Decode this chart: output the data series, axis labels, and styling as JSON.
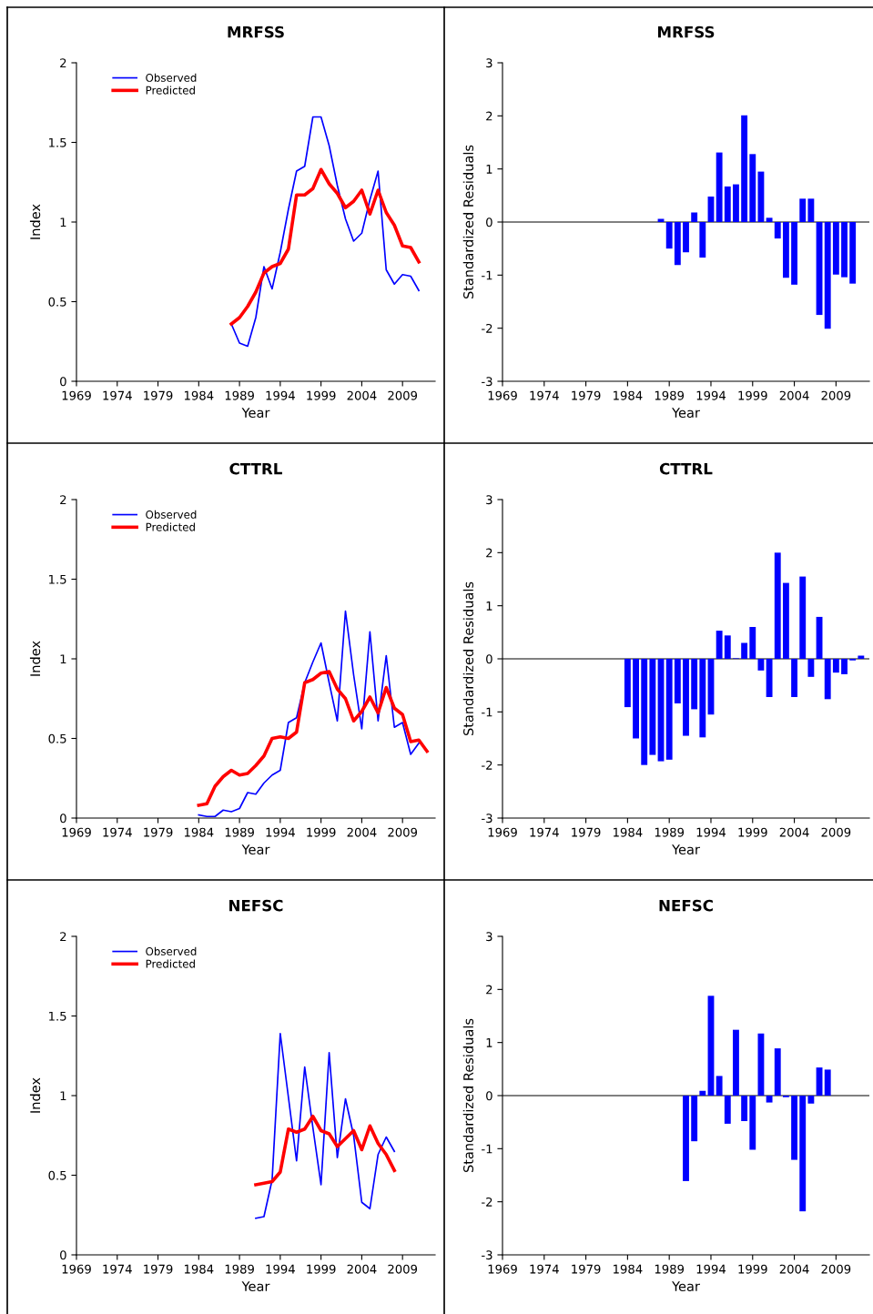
{
  "chart_data": [
    {
      "type": "line",
      "title": "MRFSS",
      "xlabel": "Year",
      "ylabel": "Index",
      "xlim": [
        1969,
        2013
      ],
      "xticks": [
        1969,
        1974,
        1979,
        1984,
        1989,
        1994,
        1999,
        2004,
        2009
      ],
      "ylim": [
        0,
        2
      ],
      "yticks": [
        0,
        0.5,
        1,
        1.5,
        2
      ],
      "legend": "top left",
      "series": [
        {
          "name": "Observed",
          "color": "#0000ff",
          "x": [
            1988,
            1989,
            1990,
            1991,
            1992,
            1993,
            1994,
            1995,
            1996,
            1997,
            1998,
            1999,
            2000,
            2001,
            2002,
            2003,
            2004,
            2005,
            2006,
            2007,
            2008,
            2009,
            2010,
            2011
          ],
          "values": [
            0.36,
            0.24,
            0.22,
            0.4,
            0.72,
            0.58,
            0.81,
            1.08,
            1.32,
            1.35,
            1.66,
            1.66,
            1.48,
            1.23,
            1.02,
            0.88,
            0.93,
            1.14,
            1.32,
            0.7,
            0.61,
            0.67,
            0.66,
            0.57
          ]
        },
        {
          "name": "Predicted",
          "color": "#ff0000",
          "x": [
            1988,
            1989,
            1990,
            1991,
            1992,
            1993,
            1994,
            1995,
            1996,
            1997,
            1998,
            1999,
            2000,
            2001,
            2002,
            2003,
            2004,
            2005,
            2006,
            2007,
            2008,
            2009,
            2010,
            2011
          ],
          "values": [
            0.36,
            0.4,
            0.47,
            0.56,
            0.68,
            0.72,
            0.74,
            0.83,
            1.17,
            1.17,
            1.21,
            1.33,
            1.24,
            1.18,
            1.09,
            1.13,
            1.2,
            1.05,
            1.2,
            1.06,
            0.98,
            0.85,
            0.84,
            0.75
          ]
        }
      ]
    },
    {
      "type": "bar",
      "title": "MRFSS",
      "xlabel": "Year",
      "ylabel": "Standardized Residuals",
      "xlim": [
        1969,
        2013
      ],
      "xticks": [
        1969,
        1974,
        1979,
        1984,
        1989,
        1994,
        1999,
        2004,
        2009
      ],
      "ylim": [
        -3,
        3
      ],
      "yticks": [
        -3,
        -2,
        -1,
        0,
        1,
        2,
        3
      ],
      "color": "#0000ff",
      "ref_lines": [
        {
          "axis": "y",
          "value": 0,
          "color": "#808080"
        }
      ],
      "x": [
        1988,
        1989,
        1990,
        1991,
        1992,
        1993,
        1994,
        1995,
        1996,
        1997,
        1998,
        1999,
        2000,
        2001,
        2002,
        2003,
        2004,
        2005,
        2006,
        2007,
        2008,
        2009,
        2010,
        2011
      ],
      "values": [
        0.06,
        -0.5,
        -0.81,
        -0.57,
        0.18,
        -0.67,
        0.48,
        1.31,
        0.67,
        0.71,
        2.01,
        1.28,
        0.95,
        0.08,
        -0.31,
        -1.05,
        -1.18,
        0.44,
        0.44,
        -1.75,
        -2.01,
        -0.99,
        -1.04,
        -1.16
      ]
    },
    {
      "type": "line",
      "title": "CTTRL",
      "xlabel": "Year",
      "ylabel": "Index",
      "xlim": [
        1969,
        2013
      ],
      "xticks": [
        1969,
        1974,
        1979,
        1984,
        1989,
        1994,
        1999,
        2004,
        2009
      ],
      "ylim": [
        0,
        2
      ],
      "yticks": [
        0,
        0.5,
        1,
        1.5,
        2
      ],
      "legend": "top left",
      "series": [
        {
          "name": "Observed",
          "color": "#0000ff",
          "x": [
            1984,
            1985,
            1986,
            1987,
            1988,
            1989,
            1990,
            1991,
            1992,
            1993,
            1994,
            1995,
            1996,
            1997,
            1998,
            1999,
            2000,
            2001,
            2002,
            2003,
            2004,
            2005,
            2006,
            2007,
            2008,
            2009,
            2010,
            2011
          ],
          "values": [
            0.02,
            0.01,
            0.01,
            0.05,
            0.04,
            0.06,
            0.16,
            0.15,
            0.22,
            0.27,
            0.3,
            0.6,
            0.63,
            0.85,
            0.98,
            1.1,
            0.85,
            0.61,
            1.3,
            0.9,
            0.56,
            1.17,
            0.61,
            1.02,
            0.57,
            0.6,
            0.4,
            0.47
          ]
        },
        {
          "name": "Predicted",
          "color": "#ff0000",
          "x": [
            1984,
            1985,
            1986,
            1987,
            1988,
            1989,
            1990,
            1991,
            1992,
            1993,
            1994,
            1995,
            1996,
            1997,
            1998,
            1999,
            2000,
            2001,
            2002,
            2003,
            2004,
            2005,
            2006,
            2007,
            2008,
            2009,
            2010,
            2011,
            2012
          ],
          "values": [
            0.08,
            0.09,
            0.2,
            0.26,
            0.3,
            0.27,
            0.28,
            0.33,
            0.39,
            0.5,
            0.51,
            0.5,
            0.54,
            0.85,
            0.87,
            0.91,
            0.92,
            0.81,
            0.75,
            0.61,
            0.67,
            0.76,
            0.66,
            0.82,
            0.69,
            0.65,
            0.48,
            0.49,
            0.42
          ]
        }
      ]
    },
    {
      "type": "bar",
      "title": "CTTRL",
      "xlabel": "Year",
      "ylabel": "Standardized Residuals",
      "xlim": [
        1969,
        2013
      ],
      "xticks": [
        1969,
        1974,
        1979,
        1984,
        1989,
        1994,
        1999,
        2004,
        2009
      ],
      "ylim": [
        -3,
        3
      ],
      "yticks": [
        -3,
        -2,
        -1,
        0,
        1,
        2,
        3
      ],
      "color": "#0000ff",
      "ref_lines": [
        {
          "axis": "y",
          "value": 0,
          "color": "#808080"
        }
      ],
      "x": [
        1984,
        1985,
        1986,
        1987,
        1988,
        1989,
        1990,
        1991,
        1992,
        1993,
        1994,
        1995,
        1996,
        1997,
        1998,
        1999,
        2000,
        2001,
        2002,
        2003,
        2004,
        2005,
        2006,
        2007,
        2008,
        2009,
        2010,
        2011,
        2012
      ],
      "values": [
        -0.91,
        -1.5,
        -2.0,
        -1.81,
        -1.93,
        -1.9,
        -0.84,
        -1.45,
        -0.95,
        -1.48,
        -1.05,
        0.53,
        0.44,
        0.01,
        0.3,
        0.6,
        -0.22,
        -0.72,
        2.0,
        1.43,
        -0.72,
        1.55,
        -0.34,
        0.79,
        -0.76,
        -0.26,
        -0.29,
        -0.03,
        0.06
      ]
    },
    {
      "type": "line",
      "title": "NEFSC",
      "xlabel": "Year",
      "ylabel": "Index",
      "xlim": [
        1969,
        2013
      ],
      "xticks": [
        1969,
        1974,
        1979,
        1984,
        1989,
        1994,
        1999,
        2004,
        2009
      ],
      "ylim": [
        0,
        2
      ],
      "yticks": [
        0,
        0.5,
        1,
        1.5,
        2
      ],
      "legend": "top left",
      "series": [
        {
          "name": "Observed",
          "color": "#0000ff",
          "x": [
            1991,
            1992,
            1993,
            1994,
            1995,
            1996,
            1997,
            1998,
            1999,
            2000,
            2001,
            2002,
            2003,
            2004,
            2005,
            2006,
            2007,
            2008
          ],
          "values": [
            0.23,
            0.24,
            0.47,
            1.39,
            0.99,
            0.59,
            1.18,
            0.8,
            0.44,
            1.27,
            0.61,
            0.98,
            0.75,
            0.33,
            0.29,
            0.63,
            0.74,
            0.65
          ]
        },
        {
          "name": "Predicted",
          "color": "#ff0000",
          "x": [
            1991,
            1992,
            1993,
            1994,
            1995,
            1996,
            1997,
            1998,
            1999,
            2000,
            2001,
            2002,
            2003,
            2004,
            2005,
            2006,
            2007,
            2008
          ],
          "values": [
            0.44,
            0.45,
            0.46,
            0.52,
            0.79,
            0.77,
            0.79,
            0.87,
            0.78,
            0.76,
            0.68,
            0.73,
            0.78,
            0.66,
            0.81,
            0.7,
            0.63,
            0.53
          ]
        }
      ]
    },
    {
      "type": "bar",
      "title": "NEFSC",
      "xlabel": "Year",
      "ylabel": "Standardized Residuals",
      "xlim": [
        1969,
        2013
      ],
      "xticks": [
        1969,
        1974,
        1979,
        1984,
        1989,
        1994,
        1999,
        2004,
        2009
      ],
      "ylim": [
        -3,
        3
      ],
      "yticks": [
        -3,
        -2,
        -1,
        0,
        1,
        2,
        3
      ],
      "color": "#0000ff",
      "ref_lines": [
        {
          "axis": "y",
          "value": 0,
          "color": "#808080"
        }
      ],
      "x": [
        1991,
        1992,
        1993,
        1994,
        1995,
        1996,
        1997,
        1998,
        1999,
        2000,
        2001,
        2002,
        2003,
        2004,
        2005,
        2006,
        2007,
        2008
      ],
      "values": [
        -1.61,
        -0.86,
        0.09,
        1.88,
        0.37,
        -0.53,
        1.24,
        -0.48,
        -1.02,
        1.17,
        -0.13,
        0.89,
        -0.03,
        -1.21,
        -2.18,
        -0.15,
        0.53,
        0.49
      ]
    }
  ]
}
